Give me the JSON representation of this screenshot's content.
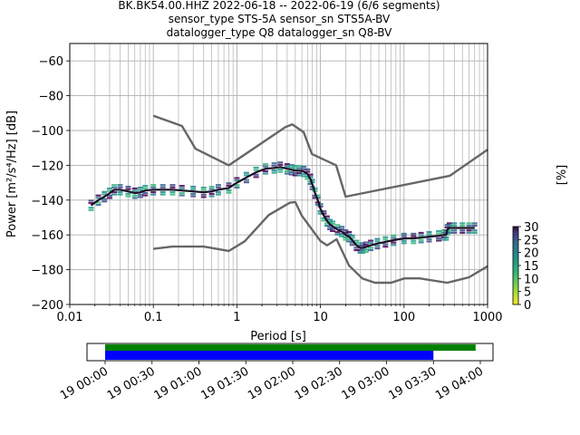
{
  "chart_data": {
    "type": "line",
    "title_lines": [
      "BK.BK54.00.HHZ   2022-06-18 -- 2022-06-19  (6/6 segments)",
      "sensor_type STS-5A sensor_sn STS5A-BV",
      "datalogger_type Q8 datalogger_sn Q8-BV"
    ],
    "xlabel": "Period [s]",
    "ylabel": "Power [m²/s⁴/Hz] [dB]",
    "xscale": "log",
    "xlim": [
      0.01,
      1000
    ],
    "ylim": [
      -200,
      -50
    ],
    "x_tick_labels": [
      "0.01",
      "0.1",
      "1",
      "10",
      "100",
      "1000"
    ],
    "y_tick_labels": [
      "−200",
      "−180",
      "−160",
      "−140",
      "−120",
      "−100",
      "−80",
      "−60"
    ],
    "grid": true,
    "series": [
      {
        "role": "high-noise-model",
        "color": "#666666",
        "x": [
          0.1,
          0.22,
          0.32,
          0.8,
          3.8,
          4.6,
          6.3,
          7.9,
          15.4,
          20,
          354.8,
          1000
        ],
        "y": [
          -91.5,
          -97.4,
          -110.5,
          -120,
          -98,
          -96.5,
          -101,
          -113.5,
          -120,
          -138,
          -126,
          -111
        ]
      },
      {
        "role": "low-noise-model",
        "color": "#666666",
        "x": [
          0.1,
          0.17,
          0.4,
          0.8,
          1.24,
          2.4,
          4.3,
          5.0,
          6.0,
          10.0,
          12.0,
          15.6,
          21.9,
          31.6,
          45,
          70,
          101,
          154,
          328,
          600,
          1000
        ],
        "y": [
          -168,
          -166.7,
          -166.7,
          -169.2,
          -163.7,
          -148.6,
          -141.5,
          -141.1,
          -149,
          -163.5,
          -166,
          -162.5,
          -177.5,
          -185,
          -187.5,
          -187.5,
          -185,
          -185,
          -187.5,
          -184.4,
          -178
        ]
      },
      {
        "role": "psd-mode",
        "color": "#1a1026",
        "x": [
          0.018,
          0.022,
          0.026,
          0.03,
          0.034,
          0.04,
          0.05,
          0.06,
          0.07,
          0.08,
          0.1,
          0.13,
          0.17,
          0.22,
          0.3,
          0.4,
          0.5,
          0.6,
          0.8,
          1.0,
          1.3,
          1.7,
          2.2,
          2.8,
          3.3,
          4.0,
          4.5,
          5.0,
          5.6,
          6.3,
          7.0,
          7.6,
          8.0,
          8.6,
          9.3,
          10,
          11,
          12,
          13,
          14,
          16,
          18,
          20,
          22,
          24,
          27,
          30,
          32,
          35,
          40,
          48,
          60,
          75,
          100,
          130,
          160,
          200,
          260,
          300,
          320,
          330,
          350,
          400,
          500,
          600,
          700
        ],
        "y": [
          -143,
          -140,
          -138,
          -136,
          -134,
          -134,
          -135,
          -136,
          -135.5,
          -134.5,
          -134,
          -134,
          -134,
          -134.5,
          -135,
          -135.5,
          -135,
          -134,
          -133,
          -130,
          -127,
          -124,
          -122,
          -121.5,
          -121,
          -122,
          -122.5,
          -123,
          -123,
          -123.5,
          -125,
          -128,
          -131,
          -136,
          -140,
          -145,
          -149,
          -152,
          -154,
          -155,
          -157,
          -158,
          -160,
          -161,
          -163,
          -166,
          -167.5,
          -167.5,
          -167,
          -166,
          -165,
          -164,
          -163,
          -162,
          -162,
          -161.5,
          -161,
          -160.5,
          -160,
          -160,
          -157,
          -156,
          -156,
          -156,
          -156,
          -156
        ]
      }
    ],
    "colorbar": {
      "label": "[%]",
      "range": [
        0,
        30
      ],
      "tick_labels": [
        "0",
        "5",
        "10",
        "15",
        "20",
        "25",
        "30"
      ]
    },
    "coverage": {
      "start": "2022-06-19T00:00",
      "end": "2022-06-19T04:00",
      "tick_labels": [
        "19 00:00",
        "19 00:30",
        "19 01:00",
        "19 01:30",
        "19 02:00",
        "19 02:30",
        "19 03:00",
        "19 03:30",
        "19 04:00"
      ],
      "bars": [
        {
          "role": "data-available",
          "color": "#008000",
          "start": "2022-06-19T00:00",
          "end": "2022-06-19T03:57"
        },
        {
          "role": "psd-segments",
          "color": "#0000ff",
          "start": "2022-06-19T00:00",
          "end": "2022-06-19T03:30"
        }
      ]
    }
  }
}
